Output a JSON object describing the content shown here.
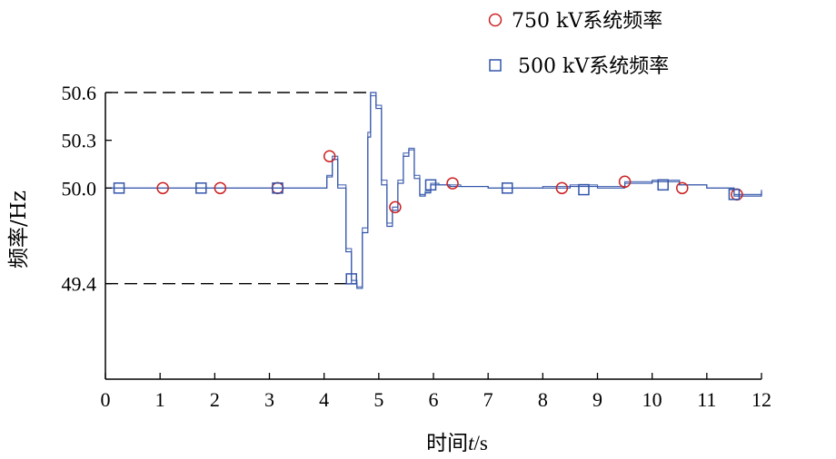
{
  "chart_data": {
    "type": "line",
    "xlabel": "时间t/s",
    "xlabel_parts": [
      "时间",
      "t",
      "/s"
    ],
    "ylabel": "频率/Hz",
    "xlim": [
      0,
      12
    ],
    "ylim": [
      48.8,
      50.6
    ],
    "x_ticks": [
      0,
      1,
      2,
      3,
      4,
      5,
      6,
      7,
      8,
      9,
      10,
      11,
      12
    ],
    "x_tick_labels": [
      "0",
      "1",
      "2",
      "3",
      "4",
      "5",
      "6",
      "7",
      "8",
      "9",
      "10",
      "11",
      "12"
    ],
    "y_ticks": [
      50.6,
      50.3,
      50.0,
      49.4
    ],
    "y_tick_labels": [
      "50.6",
      "50.3",
      "50.0",
      "49.4"
    ],
    "reference_lines": [
      {
        "y": 50.6,
        "from_x": 0,
        "to_x": 4.85,
        "style": "dashed"
      },
      {
        "y": 49.4,
        "from_x": 0,
        "to_x": 4.5,
        "style": "dashed"
      }
    ],
    "grid": false,
    "legend_position": "top-right",
    "series": [
      {
        "name": "750 kV系统频率",
        "marker": "circle",
        "color": "#cc2222",
        "line_color": "#3355aa",
        "x": [
          0,
          0.5,
          1.0,
          2.0,
          3.0,
          4.0,
          4.05,
          4.15,
          4.25,
          4.4,
          4.5,
          4.6,
          4.7,
          4.8,
          4.85,
          4.95,
          5.05,
          5.15,
          5.25,
          5.35,
          5.45,
          5.55,
          5.65,
          5.75,
          5.85,
          5.95,
          6.1,
          6.3,
          6.5,
          7.0,
          7.5,
          8.0,
          8.5,
          9.0,
          9.5,
          10.0,
          10.5,
          11.0,
          11.5,
          12.0
        ],
        "values": [
          50.0,
          50.0,
          50.0,
          50.0,
          50.0,
          50.0,
          50.08,
          50.2,
          50.02,
          49.62,
          49.42,
          49.38,
          49.75,
          50.35,
          50.58,
          50.52,
          50.05,
          49.78,
          49.88,
          50.05,
          50.22,
          50.25,
          50.08,
          49.96,
          49.98,
          50.03,
          50.02,
          50.02,
          50.01,
          50.0,
          50.0,
          50.01,
          50.02,
          50.01,
          50.04,
          50.05,
          50.02,
          50.0,
          49.96,
          49.99
        ],
        "marker_points": [
          {
            "x": 1.05,
            "y": 50.0
          },
          {
            "x": 2.1,
            "y": 50.0
          },
          {
            "x": 3.15,
            "y": 50.0
          },
          {
            "x": 4.1,
            "y": 50.2
          },
          {
            "x": 5.3,
            "y": 49.88
          },
          {
            "x": 6.35,
            "y": 50.03
          },
          {
            "x": 8.35,
            "y": 50.0
          },
          {
            "x": 9.5,
            "y": 50.04
          },
          {
            "x": 10.55,
            "y": 50.0
          },
          {
            "x": 11.55,
            "y": 49.96
          }
        ]
      },
      {
        "name": "500 kV系统频率",
        "marker": "square",
        "color": "#3355aa",
        "line_color": "#3355aa",
        "x": [
          0,
          0.5,
          1.0,
          2.0,
          3.0,
          4.0,
          4.05,
          4.15,
          4.25,
          4.4,
          4.5,
          4.6,
          4.7,
          4.8,
          4.85,
          4.95,
          5.05,
          5.15,
          5.25,
          5.35,
          5.45,
          5.55,
          5.65,
          5.75,
          5.85,
          5.95,
          6.1,
          6.3,
          6.5,
          7.0,
          7.5,
          8.0,
          8.5,
          9.0,
          9.5,
          10.0,
          10.5,
          11.0,
          11.5,
          12.0
        ],
        "values": [
          50.0,
          50.0,
          50.0,
          50.0,
          50.0,
          50.0,
          50.07,
          50.18,
          50.0,
          49.6,
          49.4,
          49.37,
          49.72,
          50.32,
          50.6,
          50.5,
          50.02,
          49.76,
          49.86,
          50.03,
          50.2,
          50.24,
          50.06,
          49.95,
          49.97,
          50.02,
          50.02,
          50.01,
          50.01,
          50.0,
          50.0,
          50.0,
          50.01,
          50.0,
          50.03,
          50.04,
          50.02,
          50.0,
          49.95,
          49.98
        ],
        "marker_points": [
          {
            "x": 0.25,
            "y": 50.0
          },
          {
            "x": 1.75,
            "y": 50.0
          },
          {
            "x": 3.15,
            "y": 50.0
          },
          {
            "x": 4.5,
            "y": 49.43
          },
          {
            "x": 5.95,
            "y": 50.02
          },
          {
            "x": 7.35,
            "y": 50.0
          },
          {
            "x": 8.75,
            "y": 49.99
          },
          {
            "x": 10.2,
            "y": 50.02
          },
          {
            "x": 11.5,
            "y": 49.96
          }
        ]
      }
    ]
  }
}
